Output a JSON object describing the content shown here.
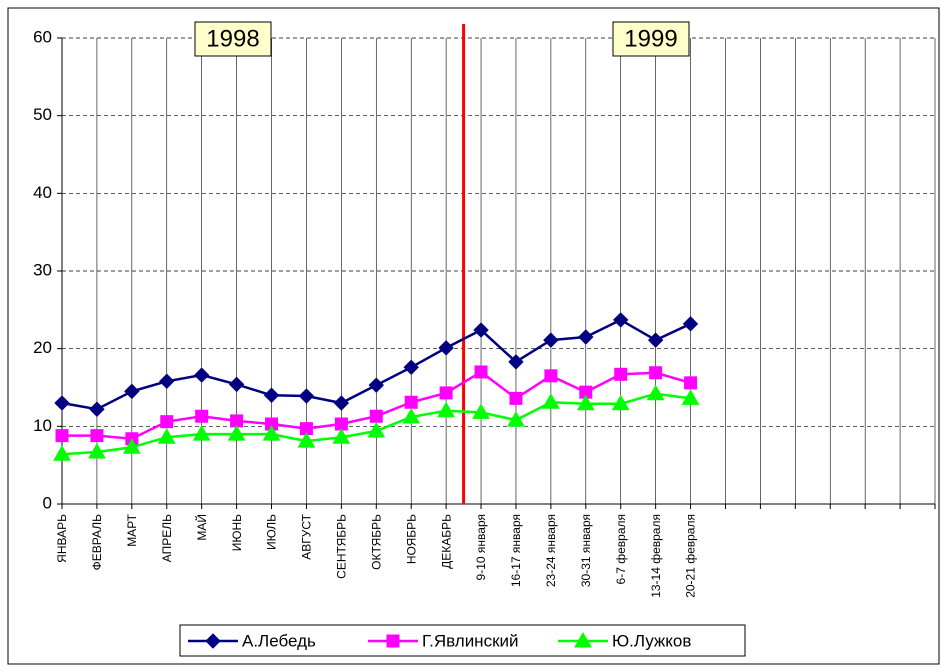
{
  "chart_data": {
    "type": "line",
    "categories": [
      "ЯНВАРЬ",
      "ФЕВРАЛЬ",
      "МАРТ",
      "АПРЕЛЬ",
      "МАЙ",
      "ИЮНЬ",
      "ИЮЛЬ",
      "АВГУСТ",
      "СЕНТЯБРЬ",
      "ОКТЯБРЬ",
      "НОЯБРЬ",
      "ДЕКАБРЬ",
      "9-10 января",
      "16-17 января",
      "23-24 января",
      "30-31 января",
      "6-7 февраля",
      "13-14 февраля",
      "20-21 февраля",
      null,
      null,
      null,
      null,
      null,
      null,
      null
    ],
    "series": [
      {
        "name": "А.Лебедь",
        "color": "#000080",
        "marker": "diamond",
        "values": [
          13.0,
          12.2,
          14.5,
          15.8,
          16.6,
          15.4,
          14.0,
          13.9,
          13.0,
          15.3,
          17.6,
          20.1,
          22.4,
          18.3,
          21.1,
          21.5,
          23.7,
          21.1,
          23.2,
          null,
          null,
          null,
          null,
          null,
          null,
          null
        ]
      },
      {
        "name": "Г.Явлинский",
        "color": "#ff00ff",
        "marker": "square",
        "values": [
          8.8,
          8.8,
          8.4,
          10.6,
          11.3,
          10.7,
          10.3,
          9.7,
          10.3,
          11.3,
          13.1,
          14.3,
          17.0,
          13.6,
          16.5,
          14.4,
          16.7,
          16.9,
          15.6,
          null,
          null,
          null,
          null,
          null,
          null,
          null
        ]
      },
      {
        "name": "Ю.Лужков",
        "color": "#00ff00",
        "marker": "triangle",
        "values": [
          6.4,
          6.7,
          7.3,
          8.6,
          9.0,
          9.0,
          9.0,
          8.1,
          8.6,
          9.4,
          11.2,
          12.0,
          11.8,
          10.8,
          13.1,
          12.9,
          12.9,
          14.2,
          13.6,
          null,
          null,
          null,
          null,
          null,
          null,
          null
        ]
      }
    ],
    "annotations": [
      "1998",
      "1999"
    ],
    "ylim": [
      0,
      60
    ],
    "yticks": [
      0,
      10,
      20,
      30,
      40,
      50,
      60
    ],
    "grid": true,
    "legend": "bottom"
  }
}
